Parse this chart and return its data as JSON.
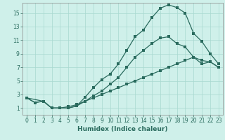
{
  "xlabel": "Humidex (Indice chaleur)",
  "bg_color": "#cff0ea",
  "grid_color": "#a8d8d0",
  "line_color": "#2a6b5e",
  "spine_color": "#888888",
  "xlim": [
    -0.5,
    23.5
  ],
  "ylim": [
    0,
    16.5
  ],
  "xticks": [
    0,
    1,
    2,
    3,
    4,
    5,
    6,
    7,
    8,
    9,
    10,
    11,
    12,
    13,
    14,
    15,
    16,
    17,
    18,
    19,
    20,
    21,
    22,
    23
  ],
  "yticks": [
    1,
    3,
    5,
    7,
    9,
    11,
    13,
    15
  ],
  "line1_x": [
    0,
    1,
    2,
    3,
    4,
    5,
    6,
    7,
    8,
    9,
    10,
    11,
    12,
    13,
    14,
    15,
    16,
    17,
    18,
    19,
    20,
    21,
    22,
    23
  ],
  "line1_y": [
    2.5,
    1.8,
    2.0,
    1.0,
    1.0,
    1.0,
    1.3,
    2.6,
    4.0,
    5.2,
    6.0,
    7.5,
    9.5,
    11.5,
    12.5,
    14.3,
    15.7,
    16.2,
    15.8,
    15.0,
    12.0,
    10.8,
    9.0,
    7.5
  ],
  "line2_x": [
    0,
    2,
    3,
    4,
    5,
    6,
    7,
    8,
    9,
    10,
    11,
    12,
    13,
    14,
    15,
    16,
    17,
    18,
    19,
    20,
    21,
    22,
    23
  ],
  "line2_y": [
    2.5,
    2.0,
    1.0,
    1.0,
    1.0,
    1.3,
    2.0,
    2.8,
    3.5,
    4.5,
    5.5,
    7.0,
    8.5,
    9.5,
    10.5,
    11.3,
    11.5,
    10.5,
    10.0,
    8.5,
    8.0,
    7.8,
    7.0
  ],
  "line3_x": [
    0,
    1,
    2,
    3,
    4,
    5,
    6,
    7,
    8,
    9,
    10,
    11,
    12,
    13,
    14,
    15,
    16,
    17,
    18,
    19,
    20,
    21,
    22,
    23
  ],
  "line3_y": [
    2.5,
    1.8,
    2.0,
    1.0,
    1.0,
    1.2,
    1.5,
    2.0,
    2.5,
    3.0,
    3.5,
    4.0,
    4.5,
    5.0,
    5.5,
    6.0,
    6.5,
    7.0,
    7.5,
    8.0,
    8.5,
    7.5,
    7.8,
    7.0
  ],
  "tick_fontsize": 5.5,
  "xlabel_fontsize": 6.5,
  "marker_size": 2.5,
  "line_width": 0.9
}
